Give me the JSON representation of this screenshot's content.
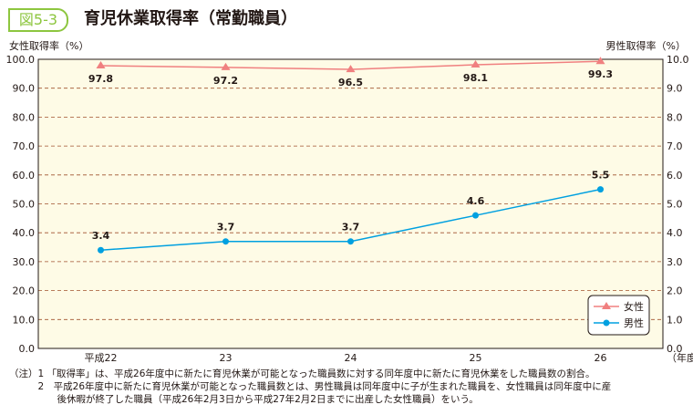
{
  "figure": {
    "badge": "図5-3",
    "title": "育児休業取得率（常勤職員）"
  },
  "chart_data": {
    "type": "line",
    "categories": [
      "平成22",
      "23",
      "24",
      "25",
      "26"
    ],
    "xlabel": "（年度）",
    "y_left": {
      "label": "女性取得率（%）",
      "range": [
        0,
        100
      ],
      "ticks": [
        "0.0",
        "10.0",
        "20.0",
        "30.0",
        "40.0",
        "50.0",
        "60.0",
        "70.0",
        "80.0",
        "90.0",
        "100.0"
      ]
    },
    "y_right": {
      "label": "男性取得率（%）",
      "range": [
        0,
        10
      ],
      "ticks": [
        "0.0",
        "1.0",
        "2.0",
        "3.0",
        "4.0",
        "5.0",
        "6.0",
        "7.0",
        "8.0",
        "9.0",
        "10.0"
      ]
    },
    "grid": "horizontal dashed",
    "legend_position": "bottom-right",
    "background": "#fefbe6",
    "series": [
      {
        "name": "女性",
        "axis": "left",
        "values": [
          97.8,
          97.2,
          96.5,
          98.1,
          99.3
        ],
        "labels": [
          "97.8",
          "97.2",
          "96.5",
          "98.1",
          "99.3"
        ],
        "color": "#f08080",
        "marker": "triangle"
      },
      {
        "name": "男性",
        "axis": "right",
        "values": [
          3.4,
          3.7,
          3.7,
          4.6,
          5.5
        ],
        "labels": [
          "3.4",
          "3.7",
          "3.7",
          "4.6",
          "5.5"
        ],
        "color": "#00a0e0",
        "marker": "circle"
      }
    ]
  },
  "notes": [
    "（注）1 「取得率」は、平成26年度中に新たに育児休業が可能となった職員数に対する同年度中に新たに育児休業をした職員数の割合。",
    "　　　2　平成26年度中に新たに育児休業が可能となった職員数とは、男性職員は同年度中に子が生まれた職員を、女性職員は同年度中に産",
    "　　　　　後休暇が終了した職員（平成26年2月3日から平成27年2月2日までに出産した女性職員）をいう。"
  ]
}
